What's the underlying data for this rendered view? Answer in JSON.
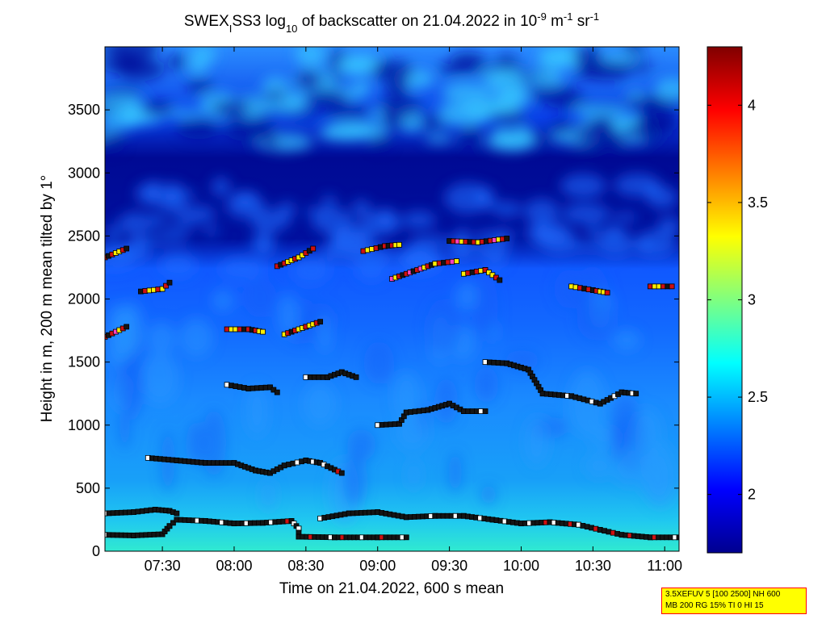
{
  "chart_data": {
    "type": "heatmap",
    "title": {
      "prefix": "SWEX",
      "prefix_sub": "I",
      "mid": "SS3 log",
      "mid_sub": "10",
      "main": " of backscatter on 21.04.2022 in 10",
      "exp1": "-9",
      "unit1": " m",
      "exp2": "-1",
      "unit2": " sr",
      "exp3": "-1"
    },
    "xlabel": "Time on 21.04.2022, 600 s mean",
    "ylabel": "Height in m, 200 m mean tilted by 1°",
    "xlim_hours": [
      7.1,
      11.1
    ],
    "ylim": [
      0,
      4000
    ],
    "xticks": [
      {
        "value": 7.5,
        "label": "07:30"
      },
      {
        "value": 8.0,
        "label": "08:00"
      },
      {
        "value": 8.5,
        "label": "08:30"
      },
      {
        "value": 9.0,
        "label": "09:00"
      },
      {
        "value": 9.5,
        "label": "09:30"
      },
      {
        "value": 10.0,
        "label": "10:00"
      },
      {
        "value": 10.5,
        "label": "10:30"
      },
      {
        "value": 11.0,
        "label": "11:00"
      }
    ],
    "yticks": [
      0,
      500,
      1000,
      1500,
      2000,
      2500,
      3000,
      3500
    ],
    "colorbar": {
      "range": [
        1.7,
        4.3
      ],
      "ticks": [
        2,
        2.5,
        3,
        3.5,
        4
      ],
      "colormap": "jet"
    },
    "layers": [
      {
        "name": "surface-layer",
        "points": [
          [
            7.1,
            130
          ],
          [
            7.3,
            125
          ],
          [
            7.5,
            135
          ],
          [
            7.55,
            200
          ],
          [
            7.6,
            250
          ],
          [
            7.8,
            240
          ],
          [
            8.0,
            220
          ],
          [
            8.2,
            225
          ],
          [
            8.4,
            240
          ],
          [
            8.45,
            180
          ],
          [
            8.45,
            115
          ],
          [
            8.7,
            110
          ],
          [
            9.0,
            110
          ],
          [
            9.2,
            110
          ]
        ]
      },
      {
        "name": "lower-branch",
        "points": [
          [
            7.1,
            300
          ],
          [
            7.3,
            310
          ],
          [
            7.45,
            330
          ],
          [
            7.55,
            320
          ],
          [
            7.6,
            300
          ]
        ]
      },
      {
        "name": "mid-surface",
        "points": [
          [
            8.6,
            260
          ],
          [
            8.8,
            300
          ],
          [
            9.0,
            310
          ],
          [
            9.2,
            270
          ],
          [
            9.4,
            280
          ],
          [
            9.6,
            280
          ],
          [
            9.8,
            250
          ],
          [
            10.0,
            220
          ],
          [
            10.2,
            230
          ],
          [
            10.4,
            210
          ],
          [
            10.55,
            170
          ],
          [
            10.7,
            130
          ],
          [
            10.9,
            110
          ],
          [
            11.1,
            110
          ]
        ]
      },
      {
        "name": "layer-700",
        "points": [
          [
            7.4,
            740
          ],
          [
            7.6,
            720
          ],
          [
            7.8,
            700
          ],
          [
            8.0,
            700
          ],
          [
            8.15,
            640
          ],
          [
            8.25,
            620
          ],
          [
            8.35,
            680
          ],
          [
            8.5,
            720
          ],
          [
            8.6,
            700
          ],
          [
            8.75,
            620
          ]
        ]
      },
      {
        "name": "layer-1000",
        "points": [
          [
            9.0,
            1000
          ],
          [
            9.15,
            1010
          ],
          [
            9.2,
            1100
          ],
          [
            9.35,
            1120
          ],
          [
            9.5,
            1170
          ],
          [
            9.6,
            1110
          ],
          [
            9.75,
            1110
          ]
        ]
      },
      {
        "name": "layer-1300",
        "points": [
          [
            7.95,
            1320
          ],
          [
            8.1,
            1290
          ],
          [
            8.25,
            1300
          ],
          [
            8.3,
            1260
          ]
        ]
      },
      {
        "name": "layer-1400",
        "points": [
          [
            8.5,
            1380
          ],
          [
            8.65,
            1380
          ],
          [
            8.75,
            1420
          ],
          [
            8.85,
            1380
          ]
        ]
      },
      {
        "name": "layer-1500",
        "points": [
          [
            9.75,
            1500
          ],
          [
            9.9,
            1490
          ],
          [
            10.05,
            1440
          ],
          [
            10.15,
            1250
          ],
          [
            10.35,
            1230
          ],
          [
            10.55,
            1170
          ],
          [
            10.7,
            1260
          ],
          [
            10.8,
            1250
          ]
        ]
      },
      {
        "name": "layer-1700",
        "points": [
          [
            7.1,
            1700
          ],
          [
            7.25,
            1780
          ]
        ]
      },
      {
        "name": "layer-1750",
        "points": [
          [
            7.95,
            1760
          ],
          [
            8.1,
            1760
          ],
          [
            8.2,
            1740
          ]
        ]
      },
      {
        "name": "layer-1750b",
        "points": [
          [
            8.35,
            1720
          ],
          [
            8.5,
            1780
          ],
          [
            8.6,
            1820
          ]
        ]
      },
      {
        "name": "layer-2100",
        "points": [
          [
            7.35,
            2060
          ],
          [
            7.5,
            2080
          ],
          [
            7.55,
            2130
          ]
        ]
      },
      {
        "name": "layer-2200",
        "points": [
          [
            9.1,
            2160
          ],
          [
            9.25,
            2220
          ],
          [
            9.4,
            2280
          ],
          [
            9.55,
            2300
          ]
        ]
      },
      {
        "name": "layer-2350",
        "points": [
          [
            8.3,
            2260
          ],
          [
            8.45,
            2330
          ],
          [
            8.55,
            2400
          ]
        ]
      },
      {
        "name": "layer-2400",
        "points": [
          [
            8.9,
            2380
          ],
          [
            9.05,
            2420
          ],
          [
            9.15,
            2430
          ]
        ]
      },
      {
        "name": "layer-2200b",
        "points": [
          [
            9.6,
            2200
          ],
          [
            9.75,
            2230
          ],
          [
            9.85,
            2150
          ]
        ]
      },
      {
        "name": "layer-2450",
        "points": [
          [
            9.5,
            2460
          ],
          [
            9.7,
            2450
          ],
          [
            9.9,
            2480
          ]
        ]
      },
      {
        "name": "layer-2080",
        "points": [
          [
            10.35,
            2100
          ],
          [
            10.5,
            2070
          ],
          [
            10.6,
            2050
          ]
        ]
      },
      {
        "name": "layer-2350b",
        "points": [
          [
            7.1,
            2330
          ],
          [
            7.25,
            2400
          ]
        ]
      },
      {
        "name": "layer-2100b",
        "points": [
          [
            10.9,
            2100
          ],
          [
            11.05,
            2100
          ]
        ]
      }
    ]
  },
  "info_box": {
    "line1": "3.5XEFUV 5 [100 2500] NH 600",
    "line2": "MB 200 RG 15% TI 0 HI 15"
  }
}
